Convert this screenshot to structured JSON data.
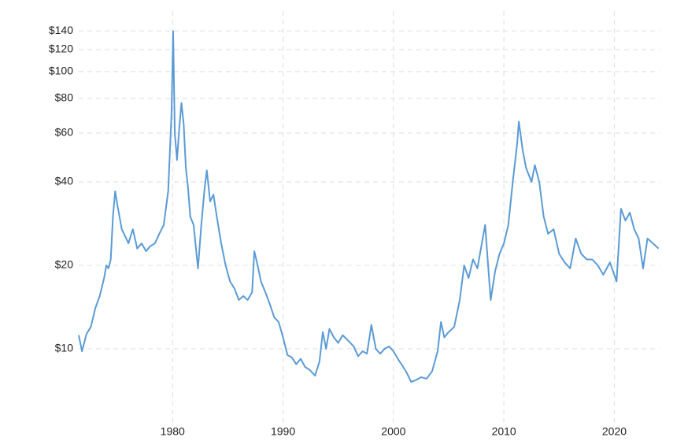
{
  "chart_data": {
    "type": "line",
    "log_y": true,
    "grid": true,
    "color": "#5b9bd5",
    "xlim": [
      1971.5,
      2024.1
    ],
    "xticks": [
      1980,
      1990,
      2000,
      2010,
      2020
    ],
    "ylim": [
      5.3,
      159
    ],
    "yticks": [
      {
        "value": 10,
        "label": "$10"
      },
      {
        "value": 20,
        "label": "$20"
      },
      {
        "value": 40,
        "label": "$40"
      },
      {
        "value": 60,
        "label": "$60"
      },
      {
        "value": 80,
        "label": "$80"
      },
      {
        "value": 100,
        "label": "$100"
      },
      {
        "value": 120,
        "label": "$120"
      },
      {
        "value": 140,
        "label": "$140"
      }
    ],
    "x": [
      1971.5,
      1971.8,
      1972.2,
      1972.6,
      1973.0,
      1973.4,
      1973.8,
      1974.0,
      1974.2,
      1974.4,
      1974.6,
      1974.8,
      1975.0,
      1975.4,
      1975.8,
      1976.0,
      1976.4,
      1976.8,
      1977.2,
      1977.6,
      1978.0,
      1978.4,
      1978.8,
      1979.2,
      1979.6,
      1979.9,
      1980.05,
      1980.2,
      1980.4,
      1980.6,
      1980.8,
      1981.0,
      1981.2,
      1981.4,
      1981.6,
      1981.9,
      1982.3,
      1982.6,
      1982.9,
      1983.1,
      1983.4,
      1983.7,
      1984.0,
      1984.4,
      1984.8,
      1985.2,
      1985.6,
      1986.0,
      1986.4,
      1986.8,
      1987.2,
      1987.4,
      1987.7,
      1988.0,
      1988.4,
      1988.8,
      1989.2,
      1989.6,
      1990.0,
      1990.4,
      1990.8,
      1991.2,
      1991.6,
      1992.0,
      1992.4,
      1992.9,
      1993.3,
      1993.6,
      1993.9,
      1994.2,
      1994.6,
      1995.0,
      1995.4,
      1996.0,
      1996.4,
      1996.8,
      1997.2,
      1997.6,
      1998.0,
      1998.4,
      1998.8,
      1999.2,
      1999.6,
      2000.0,
      2000.4,
      2000.8,
      2001.2,
      2001.6,
      2002.0,
      2002.5,
      2003.0,
      2003.5,
      2004.0,
      2004.3,
      2004.6,
      2005.0,
      2005.5,
      2006.0,
      2006.4,
      2006.8,
      2007.2,
      2007.6,
      2008.0,
      2008.3,
      2008.8,
      2009.2,
      2009.6,
      2010.0,
      2010.4,
      2010.8,
      2011.2,
      2011.35,
      2011.7,
      2012.0,
      2012.5,
      2012.8,
      2013.2,
      2013.6,
      2014.0,
      2014.5,
      2015.0,
      2015.5,
      2016.0,
      2016.5,
      2017.0,
      2017.5,
      2018.0,
      2018.5,
      2019.0,
      2019.6,
      2020.2,
      2020.6,
      2021.0,
      2021.4,
      2021.8,
      2022.2,
      2022.6,
      2023.0,
      2023.5,
      2024.0
    ],
    "values": [
      11.2,
      9.8,
      11.3,
      12,
      14,
      15.5,
      18,
      20,
      19.5,
      21,
      30,
      37,
      33,
      27,
      25,
      24,
      27,
      23,
      24,
      22.5,
      23.5,
      24,
      26,
      28,
      37,
      70,
      140,
      60,
      48,
      62,
      77,
      65,
      45,
      38,
      30,
      28,
      19.5,
      28,
      38,
      44,
      34,
      36,
      30,
      24,
      20,
      17.5,
      16.5,
      15,
      15.5,
      15,
      16,
      22.5,
      20,
      17.5,
      16,
      14.5,
      13,
      12.5,
      11,
      9.5,
      9.3,
      8.8,
      9.2,
      8.6,
      8.4,
      8.0,
      9.0,
      11.5,
      10,
      11.8,
      11,
      10.5,
      11.2,
      10.6,
      10.2,
      9.4,
      9.8,
      9.6,
      12.2,
      10,
      9.6,
      10,
      10.2,
      9.8,
      9.2,
      8.7,
      8.2,
      7.6,
      7.7,
      7.9,
      7.8,
      8.3,
      9.8,
      12.5,
      11,
      11.5,
      12,
      15,
      20,
      18,
      21,
      19.5,
      24,
      28,
      15,
      19,
      22,
      24,
      28,
      40,
      55,
      66,
      52,
      45,
      40,
      46,
      40,
      30,
      26,
      27,
      22,
      20.5,
      19.5,
      25,
      22,
      21,
      21,
      20,
      18.5,
      20.5,
      17.5,
      32,
      29,
      31,
      27,
      25,
      19.5,
      25,
      24,
      23
    ]
  }
}
